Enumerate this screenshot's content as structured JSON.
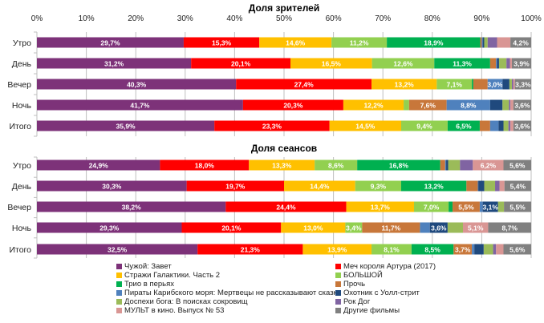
{
  "chart_data": {
    "type": "bar",
    "orientation": "horizontal",
    "stacked": "percent",
    "xlim": [
      0,
      100
    ],
    "x_ticks": [
      "0%",
      "10%",
      "20%",
      "30%",
      "40%",
      "50%",
      "60%",
      "70%",
      "80%",
      "90%",
      "100%"
    ],
    "grid": true,
    "legend_position": "bottom",
    "categories": [
      "Утро",
      "День",
      "Вечер",
      "Ночь",
      "Итого"
    ],
    "series": [
      {
        "name": "Чужой: Завет",
        "color": "#7D3279"
      },
      {
        "name": "Меч короля Артура (2017)",
        "color": "#FF0000"
      },
      {
        "name": "Стражи Галактики. Часть 2",
        "color": "#FFC000"
      },
      {
        "name": "БОЛЬШОЙ",
        "color": "#92D050"
      },
      {
        "name": "Трио в перьях",
        "color": "#00B050"
      },
      {
        "name": "Прочь",
        "color": "#C8773A"
      },
      {
        "name": "Пираты Карибского моря: Мертвецы не рассказывают сказки",
        "color": "#4F81BD"
      },
      {
        "name": "Охотник с Уолл-стрит",
        "color": "#1F497D"
      },
      {
        "name": "Доспехи бога: В поисках сокровищ",
        "color": "#9BBB59"
      },
      {
        "name": "Рок Дог",
        "color": "#8064A2"
      },
      {
        "name": "МУЛЬТ в кино. Выпуск № 53",
        "color": "#D99694"
      },
      {
        "name": "Другие фильмы",
        "color": "#808080"
      }
    ],
    "panels": [
      {
        "title": "Доля зрителей",
        "rows": [
          {
            "values": [
              29.7,
              15.3,
              14.6,
              11.2,
              18.9,
              0.3,
              0.2,
              0.3,
              0.7,
              1.9,
              2.7,
              4.2
            ],
            "labels": [
              "29,7%",
              "15,3%",
              "14,6%",
              "11,2%",
              "18,9%",
              "",
              "",
              "",
              "",
              "",
              "",
              "4,2%"
            ]
          },
          {
            "values": [
              31.2,
              20.1,
              16.5,
              12.6,
              11.3,
              1.2,
              0.2,
              0.4,
              1.5,
              0.7,
              0.4,
              3.9
            ],
            "labels": [
              "31,2%",
              "20,1%",
              "16,5%",
              "12,6%",
              "11,3%",
              "",
              "",
              "",
              "",
              "",
              "",
              "3,9%"
            ]
          },
          {
            "values": [
              40.3,
              27.4,
              13.2,
              7.1,
              0.3,
              2.9,
              3.0,
              1.4,
              0.5,
              0.3,
              0.3,
              3.3
            ],
            "labels": [
              "40,3%",
              "27,4%",
              "13,2%",
              "7,1%",
              "",
              "",
              "3,0%",
              "",
              "",
              "",
              "",
              "3,3%"
            ]
          },
          {
            "values": [
              41.7,
              20.3,
              12.2,
              1.1,
              0,
              7.6,
              8.8,
              2.5,
              1.3,
              0.3,
              0.6,
              3.6
            ],
            "labels": [
              "41,7%",
              "20,3%",
              "12,2%",
              "",
              "",
              "7,6%",
              "8,8%",
              "",
              "",
              "",
              "",
              "3,6%"
            ]
          },
          {
            "values": [
              35.9,
              23.3,
              14.5,
              9.4,
              6.5,
              2.1,
              1.7,
              1.0,
              1.0,
              0.4,
              0.6,
              3.6
            ],
            "labels": [
              "35,9%",
              "23,3%",
              "14,5%",
              "9,4%",
              "6,5%",
              "",
              "",
              "",
              "",
              "",
              "",
              "3,6%"
            ]
          }
        ]
      },
      {
        "title": "Доля сеансов",
        "rows": [
          {
            "values": [
              24.9,
              18.0,
              13.3,
              8.6,
              16.8,
              1.0,
              0.2,
              0.4,
              2.4,
              2.6,
              6.2,
              5.6
            ],
            "labels": [
              "24,9%",
              "18,0%",
              "13,3%",
              "8,6%",
              "16,8%",
              "",
              "",
              "",
              "",
              "",
              "6,2%",
              "5,6%"
            ]
          },
          {
            "values": [
              30.3,
              19.7,
              14.4,
              9.3,
              13.2,
              2.3,
              0.1,
              1.2,
              2.2,
              0.9,
              1.0,
              5.4
            ],
            "labels": [
              "30,3%",
              "19,7%",
              "14,4%",
              "9,3%",
              "13,2%",
              "",
              "",
              "",
              "",
              "",
              "",
              "5,4%"
            ]
          },
          {
            "values": [
              38.2,
              24.4,
              13.7,
              7.0,
              0.8,
              5.5,
              0.6,
              3.1,
              1.2,
              0,
              0,
              5.5
            ],
            "labels": [
              "38,2%",
              "24,4%",
              "13,7%",
              "7,0%",
              "",
              "5,5%",
              "",
              "3,1%",
              "",
              "",
              "",
              "5,5%"
            ]
          },
          {
            "values": [
              29.3,
              20.1,
              13.0,
              3.4,
              0,
              11.7,
              2.0,
              3.6,
              3.1,
              0,
              5.1,
              8.7
            ],
            "labels": [
              "29,3%",
              "20,1%",
              "13,0%",
              "3,4%",
              "",
              "11,7%",
              "",
              "3,6%",
              "3,1%",
              "",
              "5,1%",
              "8,7%"
            ]
          },
          {
            "values": [
              32.5,
              21.3,
              13.9,
              8.1,
              8.5,
              3.7,
              0.5,
              1.9,
              1.9,
              0.6,
              1.5,
              5.6
            ],
            "labels": [
              "32,5%",
              "21,3%",
              "13,9%",
              "8,1%",
              "8,5%",
              "3,7%",
              "",
              "",
              "",
              "",
              "",
              "5,6%"
            ]
          }
        ]
      }
    ]
  }
}
